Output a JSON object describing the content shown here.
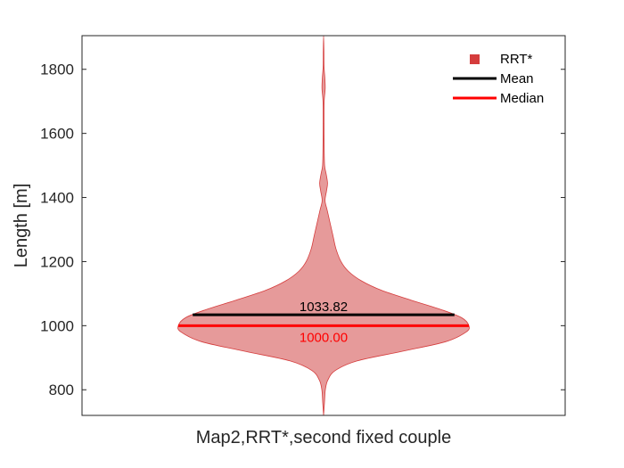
{
  "chart_data": {
    "type": "violin",
    "xlabel": "Map2,RRT*,second fixed couple",
    "ylabel": "Length [m]",
    "ylim": [
      720,
      1905
    ],
    "yticks": [
      800,
      1000,
      1200,
      1400,
      1600,
      1800
    ],
    "legend_position": "top-right",
    "legend": [
      {
        "label": "RRT*",
        "kind": "marker",
        "color": "#d53c3c"
      },
      {
        "label": "Mean",
        "kind": "line",
        "color": "#000000"
      },
      {
        "label": "Median",
        "kind": "line",
        "color": "#ff0000"
      }
    ],
    "series": [
      {
        "name": "RRT*",
        "fill_color": "#e69a9a",
        "edge_color": "#d53c3c",
        "mean": 1033.82,
        "median": 1000.0,
        "mean_label": "1033.82",
        "median_label": "1000.00",
        "mean_color": "#000000",
        "median_color": "#ff0000",
        "density_profile": [
          {
            "y": 720,
            "w": 0.0
          },
          {
            "y": 760,
            "w": 0.006
          },
          {
            "y": 800,
            "w": 0.012
          },
          {
            "y": 830,
            "w": 0.029
          },
          {
            "y": 860,
            "w": 0.08
          },
          {
            "y": 890,
            "w": 0.23
          },
          {
            "y": 920,
            "w": 0.54
          },
          {
            "y": 950,
            "w": 0.84
          },
          {
            "y": 980,
            "w": 0.98
          },
          {
            "y": 1000,
            "w": 1.0
          },
          {
            "y": 1025,
            "w": 0.95
          },
          {
            "y": 1050,
            "w": 0.81
          },
          {
            "y": 1080,
            "w": 0.6
          },
          {
            "y": 1110,
            "w": 0.4
          },
          {
            "y": 1140,
            "w": 0.26
          },
          {
            "y": 1170,
            "w": 0.17
          },
          {
            "y": 1200,
            "w": 0.12
          },
          {
            "y": 1240,
            "w": 0.085
          },
          {
            "y": 1280,
            "w": 0.065
          },
          {
            "y": 1320,
            "w": 0.045
          },
          {
            "y": 1360,
            "w": 0.025
          },
          {
            "y": 1390,
            "w": 0.01
          },
          {
            "y": 1420,
            "w": 0.02
          },
          {
            "y": 1445,
            "w": 0.027
          },
          {
            "y": 1475,
            "w": 0.017
          },
          {
            "y": 1500,
            "w": 0.007
          },
          {
            "y": 1560,
            "w": 0.004
          },
          {
            "y": 1640,
            "w": 0.003
          },
          {
            "y": 1700,
            "w": 0.004
          },
          {
            "y": 1740,
            "w": 0.011
          },
          {
            "y": 1770,
            "w": 0.009
          },
          {
            "y": 1810,
            "w": 0.003
          },
          {
            "y": 1860,
            "w": 0.002
          },
          {
            "y": 1905,
            "w": 0.0
          }
        ]
      }
    ]
  }
}
